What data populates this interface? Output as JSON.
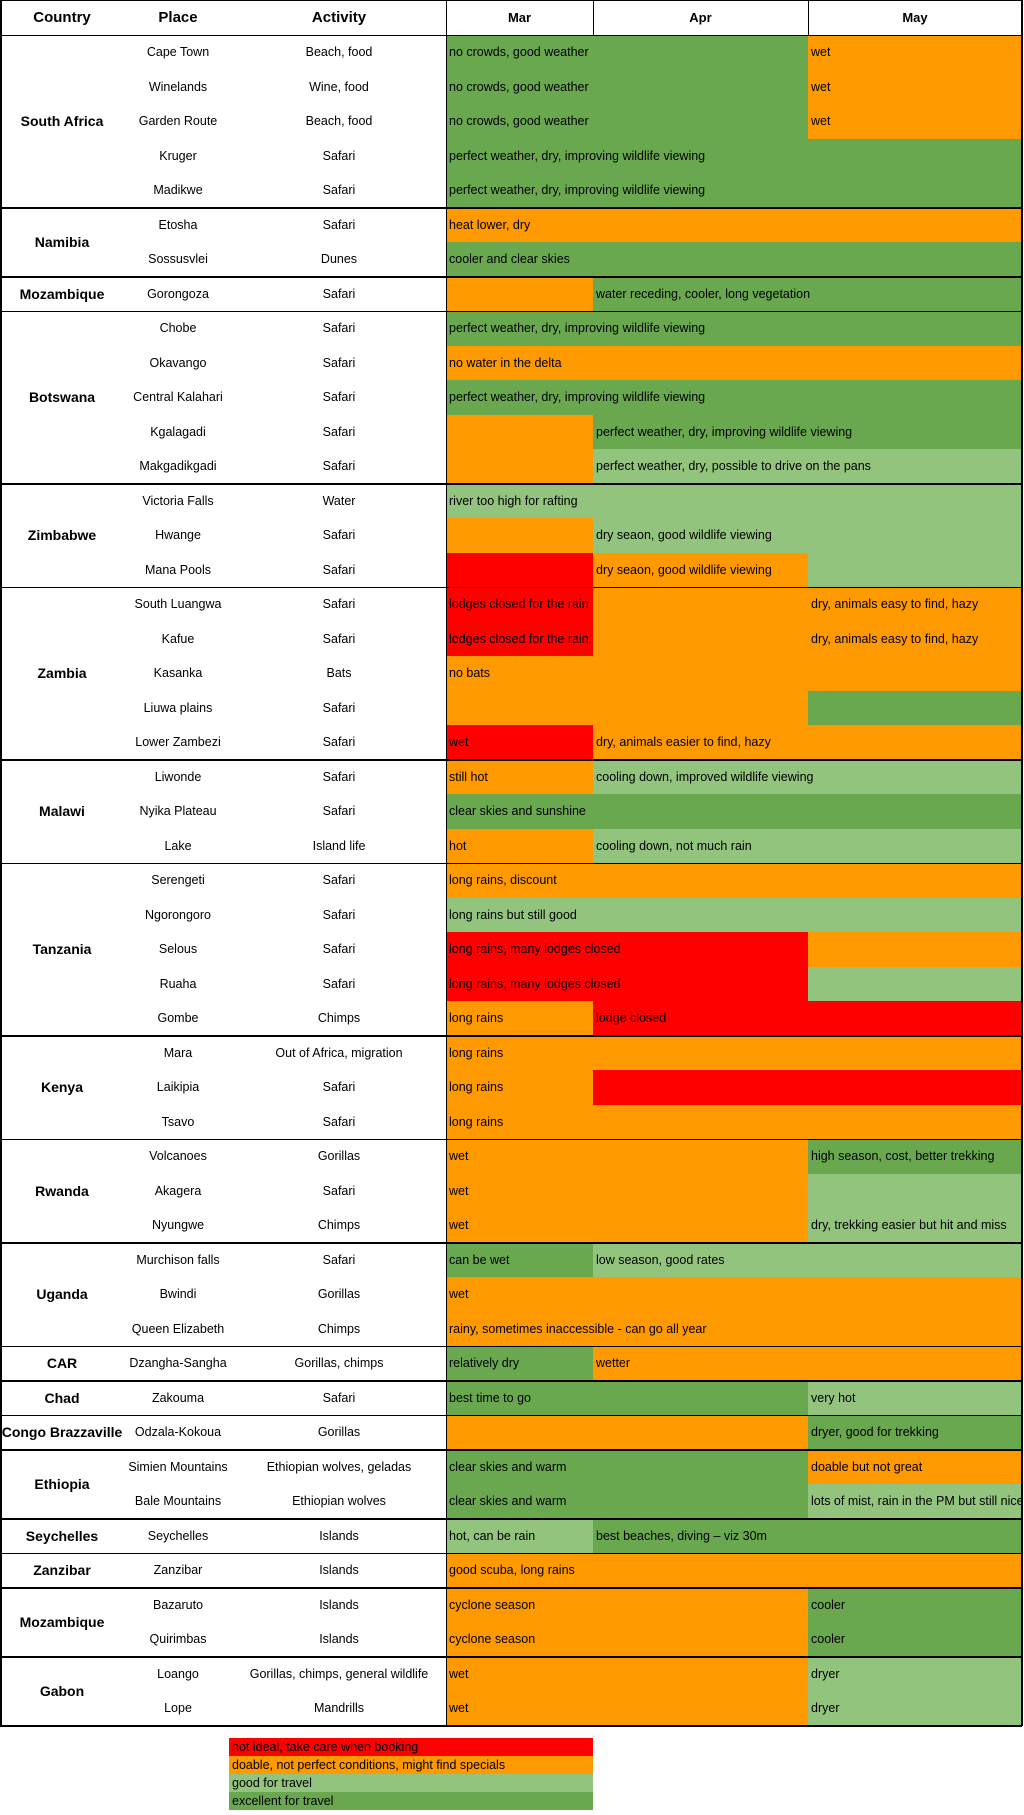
{
  "colors": {
    "excellent": "#6aa84f",
    "good": "#93c47d",
    "doable": "#ff9900",
    "not_ideal": "#ff0000"
  },
  "headers": {
    "country": "Country",
    "place": "Place",
    "activity": "Activity",
    "months": [
      "Mar",
      "Apr",
      "May"
    ]
  },
  "countries": [
    {
      "name": "South Africa",
      "rows": 5
    },
    {
      "name": "Namibia",
      "rows": 2
    },
    {
      "name": "Mozambique",
      "rows": 1
    },
    {
      "name": "Botswana",
      "rows": 5
    },
    {
      "name": "Zimbabwe",
      "rows": 3
    },
    {
      "name": "Zambia",
      "rows": 5
    },
    {
      "name": "Malawi",
      "rows": 3
    },
    {
      "name": "Tanzania",
      "rows": 5
    },
    {
      "name": "Kenya",
      "rows": 3
    },
    {
      "name": "Rwanda",
      "rows": 3
    },
    {
      "name": "Uganda",
      "rows": 3
    },
    {
      "name": "CAR",
      "rows": 1
    },
    {
      "name": "Chad",
      "rows": 1
    },
    {
      "name": "Congo Brazzaville",
      "rows": 1
    },
    {
      "name": "Ethiopia",
      "rows": 2
    },
    {
      "name": "Seychelles",
      "rows": 1
    },
    {
      "name": "Zanzibar",
      "rows": 1
    },
    {
      "name": "Mozambique",
      "rows": 2
    },
    {
      "name": "Gabon",
      "rows": 2
    }
  ],
  "rows": [
    {
      "place": "Cape Town",
      "activity": "Beach, food",
      "segments": [
        {
          "start": 0,
          "span": 2,
          "rating": "excellent",
          "text": "no crowds, good weather"
        },
        {
          "start": 2,
          "span": 1,
          "rating": "doable",
          "text": "wet"
        }
      ]
    },
    {
      "place": "Winelands",
      "activity": "Wine, food",
      "segments": [
        {
          "start": 0,
          "span": 2,
          "rating": "excellent",
          "text": "no crowds, good weather"
        },
        {
          "start": 2,
          "span": 1,
          "rating": "doable",
          "text": "wet"
        }
      ]
    },
    {
      "place": "Garden Route",
      "activity": "Beach, food",
      "segments": [
        {
          "start": 0,
          "span": 2,
          "rating": "excellent",
          "text": "no crowds, good weather"
        },
        {
          "start": 2,
          "span": 1,
          "rating": "doable",
          "text": "wet"
        }
      ]
    },
    {
      "place": "Kruger",
      "activity": "Safari",
      "segments": [
        {
          "start": 0,
          "span": 3,
          "rating": "excellent",
          "text": "perfect weather, dry, improving wildlife viewing"
        }
      ]
    },
    {
      "place": "Madikwe",
      "activity": "Safari",
      "segments": [
        {
          "start": 0,
          "span": 3,
          "rating": "excellent",
          "text": "perfect weather, dry, improving wildlife viewing"
        }
      ]
    },
    {
      "place": "Etosha",
      "activity": "Safari",
      "segments": [
        {
          "start": 0,
          "span": 3,
          "rating": "doable",
          "text": "heat lower, dry"
        }
      ]
    },
    {
      "place": "Sossusvlei",
      "activity": "Dunes",
      "segments": [
        {
          "start": 0,
          "span": 3,
          "rating": "excellent",
          "text": "cooler and clear skies"
        }
      ]
    },
    {
      "place": "Gorongoza",
      "activity": "Safari",
      "segments": [
        {
          "start": 0,
          "span": 1,
          "rating": "doable",
          "text": ""
        },
        {
          "start": 1,
          "span": 2,
          "rating": "excellent",
          "text": "water receding, cooler, long vegetation"
        }
      ]
    },
    {
      "place": "Chobe",
      "activity": "Safari",
      "segments": [
        {
          "start": 0,
          "span": 3,
          "rating": "excellent",
          "text": "perfect weather, dry, improving wildlife viewing"
        }
      ]
    },
    {
      "place": "Okavango",
      "activity": "Safari",
      "segments": [
        {
          "start": 0,
          "span": 3,
          "rating": "doable",
          "text": "no water in the delta"
        }
      ]
    },
    {
      "place": "Central Kalahari",
      "activity": "Safari",
      "segments": [
        {
          "start": 0,
          "span": 3,
          "rating": "excellent",
          "text": "perfect weather, dry, improving wildlife viewing"
        }
      ]
    },
    {
      "place": "Kgalagadi",
      "activity": "Safari",
      "segments": [
        {
          "start": 0,
          "span": 1,
          "rating": "doable",
          "text": ""
        },
        {
          "start": 1,
          "span": 2,
          "rating": "excellent",
          "text": "perfect weather, dry, improving wildlife viewing"
        }
      ]
    },
    {
      "place": "Makgadikgadi",
      "activity": "Safari",
      "segments": [
        {
          "start": 0,
          "span": 1,
          "rating": "doable",
          "text": ""
        },
        {
          "start": 1,
          "span": 2,
          "rating": "good",
          "text": "perfect weather, dry, possible to drive on the pans"
        }
      ]
    },
    {
      "place": "Victoria Falls",
      "activity": "Water",
      "segments": [
        {
          "start": 0,
          "span": 3,
          "rating": "good",
          "text": "river too high for rafting"
        }
      ]
    },
    {
      "place": "Hwange",
      "activity": "Safari",
      "segments": [
        {
          "start": 0,
          "span": 1,
          "rating": "doable",
          "text": ""
        },
        {
          "start": 1,
          "span": 2,
          "rating": "good",
          "text": "dry seaon, good wildlife viewing"
        }
      ]
    },
    {
      "place": "Mana Pools",
      "activity": "Safari",
      "segments": [
        {
          "start": 0,
          "span": 1,
          "rating": "not_ideal",
          "text": ""
        },
        {
          "start": 1,
          "span": 1,
          "rating": "doable",
          "text": "dry seaon, good wildlife viewing"
        },
        {
          "start": 2,
          "span": 1,
          "rating": "good",
          "text": ""
        }
      ]
    },
    {
      "place": "South Luangwa",
      "activity": "Safari",
      "segments": [
        {
          "start": 0,
          "span": 1,
          "rating": "not_ideal",
          "text": "lodges closed for the rain"
        },
        {
          "start": 1,
          "span": 1,
          "rating": "doable",
          "text": ""
        },
        {
          "start": 2,
          "span": 1,
          "rating": "doable",
          "text": "dry, animals easy to find, hazy"
        }
      ]
    },
    {
      "place": "Kafue",
      "activity": "Safari",
      "segments": [
        {
          "start": 0,
          "span": 1,
          "rating": "not_ideal",
          "text": "lodges closed for the rain"
        },
        {
          "start": 1,
          "span": 1,
          "rating": "doable",
          "text": ""
        },
        {
          "start": 2,
          "span": 1,
          "rating": "doable",
          "text": "dry, animals easy to find, hazy"
        }
      ]
    },
    {
      "place": "Kasanka",
      "activity": "Bats",
      "segments": [
        {
          "start": 0,
          "span": 3,
          "rating": "doable",
          "text": "no bats"
        }
      ]
    },
    {
      "place": "Liuwa plains",
      "activity": "Safari",
      "segments": [
        {
          "start": 0,
          "span": 2,
          "rating": "doable",
          "text": ""
        },
        {
          "start": 2,
          "span": 1,
          "rating": "excellent",
          "text": ""
        }
      ]
    },
    {
      "place": "Lower Zambezi",
      "activity": "Safari",
      "segments": [
        {
          "start": 0,
          "span": 1,
          "rating": "not_ideal",
          "text": "wet"
        },
        {
          "start": 1,
          "span": 2,
          "rating": "doable",
          "text": "dry, animals easier to find, hazy"
        }
      ]
    },
    {
      "place": "Liwonde",
      "activity": "Safari",
      "segments": [
        {
          "start": 0,
          "span": 1,
          "rating": "doable",
          "text": "still hot"
        },
        {
          "start": 1,
          "span": 2,
          "rating": "good",
          "text": "cooling down, improved wildlife viewing"
        }
      ]
    },
    {
      "place": "Nyika Plateau",
      "activity": "Safari",
      "segments": [
        {
          "start": 0,
          "span": 3,
          "rating": "excellent",
          "text": "clear skies and sunshine"
        }
      ]
    },
    {
      "place": "Lake",
      "activity": "Island life",
      "segments": [
        {
          "start": 0,
          "span": 1,
          "rating": "doable",
          "text": "hot"
        },
        {
          "start": 1,
          "span": 2,
          "rating": "good",
          "text": "cooling down, not much rain"
        }
      ]
    },
    {
      "place": "Serengeti",
      "activity": "Safari",
      "segments": [
        {
          "start": 0,
          "span": 3,
          "rating": "doable",
          "text": "long rains, discount"
        }
      ]
    },
    {
      "place": "Ngorongoro",
      "activity": "Safari",
      "segments": [
        {
          "start": 0,
          "span": 3,
          "rating": "good",
          "text": "long rains but still good"
        }
      ]
    },
    {
      "place": "Selous",
      "activity": "Safari",
      "segments": [
        {
          "start": 0,
          "span": 2,
          "rating": "not_ideal",
          "text": "long rains, many lodges closed"
        },
        {
          "start": 2,
          "span": 1,
          "rating": "doable",
          "text": ""
        }
      ]
    },
    {
      "place": "Ruaha",
      "activity": "Safari",
      "segments": [
        {
          "start": 0,
          "span": 2,
          "rating": "not_ideal",
          "text": "long rains, many lodges closed"
        },
        {
          "start": 2,
          "span": 1,
          "rating": "good",
          "text": ""
        }
      ]
    },
    {
      "place": "Gombe",
      "activity": "Chimps",
      "segments": [
        {
          "start": 0,
          "span": 1,
          "rating": "doable",
          "text": "long rains"
        },
        {
          "start": 1,
          "span": 2,
          "rating": "not_ideal",
          "text": "lodge closed"
        }
      ]
    },
    {
      "place": "Mara",
      "activity": "Out of Africa, migration",
      "segments": [
        {
          "start": 0,
          "span": 3,
          "rating": "doable",
          "text": "long rains"
        }
      ]
    },
    {
      "place": "Laikipia",
      "activity": "Safari",
      "segments": [
        {
          "start": 0,
          "span": 1,
          "rating": "doable",
          "text": "long rains"
        },
        {
          "start": 1,
          "span": 2,
          "rating": "not_ideal",
          "text": ""
        }
      ]
    },
    {
      "place": "Tsavo",
      "activity": "Safari",
      "segments": [
        {
          "start": 0,
          "span": 3,
          "rating": "doable",
          "text": "long rains"
        }
      ]
    },
    {
      "place": "Volcanoes",
      "activity": "Gorillas",
      "segments": [
        {
          "start": 0,
          "span": 2,
          "rating": "doable",
          "text": "wet"
        },
        {
          "start": 2,
          "span": 1,
          "rating": "excellent",
          "text": "high season, cost, better trekking"
        }
      ]
    },
    {
      "place": "Akagera",
      "activity": "Safari",
      "segments": [
        {
          "start": 0,
          "span": 2,
          "rating": "doable",
          "text": "wet"
        },
        {
          "start": 2,
          "span": 1,
          "rating": "good",
          "text": ""
        }
      ]
    },
    {
      "place": "Nyungwe",
      "activity": "Chimps",
      "segments": [
        {
          "start": 0,
          "span": 2,
          "rating": "doable",
          "text": "wet"
        },
        {
          "start": 2,
          "span": 1,
          "rating": "good",
          "text": "dry, trekking easier but hit and miss"
        }
      ]
    },
    {
      "place": "Murchison falls",
      "activity": "Safari",
      "segments": [
        {
          "start": 0,
          "span": 1,
          "rating": "excellent",
          "text": "can be wet"
        },
        {
          "start": 1,
          "span": 2,
          "rating": "good",
          "text": "low season, good rates"
        }
      ]
    },
    {
      "place": "Bwindi",
      "activity": "Gorillas",
      "segments": [
        {
          "start": 0,
          "span": 3,
          "rating": "doable",
          "text": "wet"
        }
      ]
    },
    {
      "place": "Queen Elizabeth",
      "activity": "Chimps",
      "segments": [
        {
          "start": 0,
          "span": 3,
          "rating": "doable",
          "text": "rainy, sometimes inaccessible - can go all year"
        }
      ]
    },
    {
      "place": "Dzangha-Sangha",
      "activity": "Gorillas, chimps",
      "segments": [
        {
          "start": 0,
          "span": 1,
          "rating": "excellent",
          "text": "relatively dry"
        },
        {
          "start": 1,
          "span": 2,
          "rating": "doable",
          "text": "wetter"
        }
      ]
    },
    {
      "place": "Zakouma",
      "activity": "Safari",
      "segments": [
        {
          "start": 0,
          "span": 2,
          "rating": "excellent",
          "text": "best time to go"
        },
        {
          "start": 2,
          "span": 1,
          "rating": "good",
          "text": "very hot"
        }
      ]
    },
    {
      "place": "Odzala-Kokoua",
      "activity": "Gorillas",
      "segments": [
        {
          "start": 0,
          "span": 2,
          "rating": "doable",
          "text": ""
        },
        {
          "start": 2,
          "span": 1,
          "rating": "excellent",
          "text": "dryer, good for trekking"
        }
      ]
    },
    {
      "place": "Simien Mountains",
      "activity": "Ethiopian wolves, geladas",
      "segments": [
        {
          "start": 0,
          "span": 2,
          "rating": "excellent",
          "text": "clear skies and warm"
        },
        {
          "start": 2,
          "span": 1,
          "rating": "doable",
          "text": "doable but not great"
        }
      ]
    },
    {
      "place": "Bale Mountains",
      "activity": "Ethiopian wolves",
      "segments": [
        {
          "start": 0,
          "span": 2,
          "rating": "excellent",
          "text": "clear skies and warm"
        },
        {
          "start": 2,
          "span": 1,
          "rating": "good",
          "text": "lots of mist, rain in the PM but still nice"
        }
      ]
    },
    {
      "place": "Seychelles",
      "activity": "Islands",
      "segments": [
        {
          "start": 0,
          "span": 1,
          "rating": "good",
          "text": "hot, can be rain"
        },
        {
          "start": 1,
          "span": 2,
          "rating": "excellent",
          "text": "best beaches, diving – viz 30m"
        }
      ]
    },
    {
      "place": "Zanzibar",
      "activity": "Islands",
      "segments": [
        {
          "start": 0,
          "span": 3,
          "rating": "doable",
          "text": "good scuba, long rains"
        }
      ]
    },
    {
      "place": "Bazaruto",
      "activity": "Islands",
      "segments": [
        {
          "start": 0,
          "span": 2,
          "rating": "doable",
          "text": "cyclone season"
        },
        {
          "start": 2,
          "span": 1,
          "rating": "excellent",
          "text": "cooler"
        }
      ]
    },
    {
      "place": "Quirimbas",
      "activity": "Islands",
      "segments": [
        {
          "start": 0,
          "span": 2,
          "rating": "doable",
          "text": "cyclone season"
        },
        {
          "start": 2,
          "span": 1,
          "rating": "excellent",
          "text": "cooler"
        }
      ]
    },
    {
      "place": "Loango",
      "activity": "Gorillas, chimps, general wildlife",
      "segments": [
        {
          "start": 0,
          "span": 2,
          "rating": "doable",
          "text": "wet"
        },
        {
          "start": 2,
          "span": 1,
          "rating": "good",
          "text": "dryer"
        }
      ]
    },
    {
      "place": "Lope",
      "activity": "Mandrills",
      "segments": [
        {
          "start": 0,
          "span": 2,
          "rating": "doable",
          "text": "wet"
        },
        {
          "start": 2,
          "span": 1,
          "rating": "good",
          "text": "dryer"
        }
      ]
    }
  ],
  "legend": [
    {
      "rating": "not_ideal",
      "text": "not ideal, take care when booking"
    },
    {
      "rating": "doable",
      "text": "doable, not perfect conditions, might find specials"
    },
    {
      "rating": "good",
      "text": "good for travel"
    },
    {
      "rating": "excellent",
      "text": "excellent for travel"
    }
  ]
}
